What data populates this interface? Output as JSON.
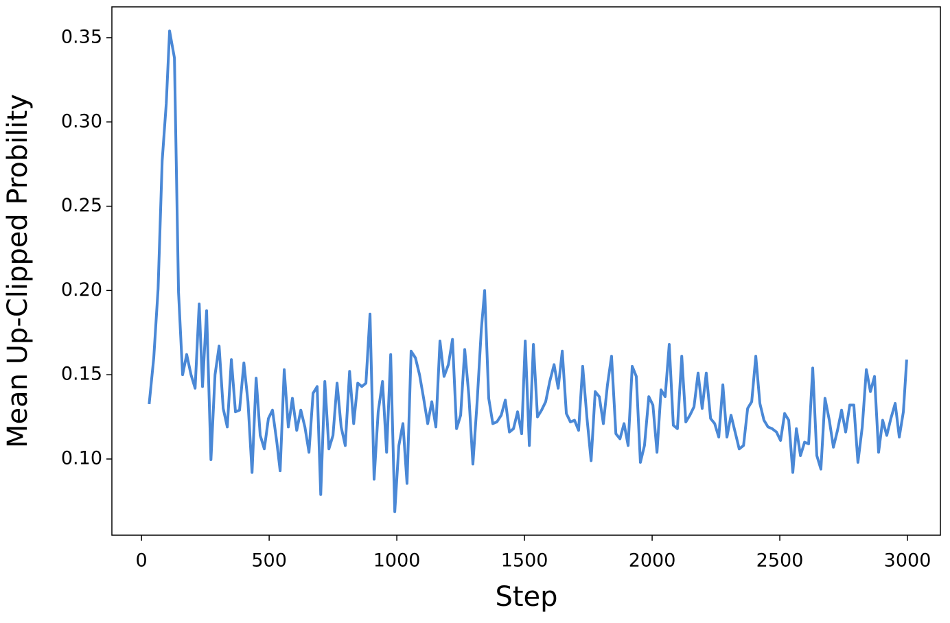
{
  "chart_data": {
    "type": "line",
    "xlabel": "Step",
    "ylabel": "Mean Up-Clipped Probility",
    "x": [
      30,
      48,
      65,
      81,
      97,
      110,
      129,
      145,
      161,
      177,
      194,
      210,
      226,
      239,
      255,
      272,
      288,
      304,
      320,
      336,
      352,
      368,
      384,
      401,
      417,
      433,
      449,
      465,
      481,
      497,
      513,
      530,
      543,
      559,
      575,
      591,
      608,
      624,
      640,
      656,
      672,
      688,
      702,
      718,
      734,
      750,
      766,
      782,
      798,
      815,
      831,
      847,
      863,
      879,
      895,
      911,
      927,
      944,
      960,
      976,
      992,
      1008,
      1024,
      1040,
      1056,
      1073,
      1089,
      1105,
      1121,
      1137,
      1153,
      1169,
      1185,
      1202,
      1218,
      1234,
      1250,
      1266,
      1282,
      1298,
      1315,
      1331,
      1344,
      1360,
      1376,
      1392,
      1409,
      1425,
      1441,
      1457,
      1473,
      1489,
      1503,
      1519,
      1535,
      1551,
      1567,
      1583,
      1599,
      1616,
      1632,
      1648,
      1664,
      1680,
      1696,
      1712,
      1728,
      1745,
      1761,
      1777,
      1793,
      1809,
      1825,
      1841,
      1858,
      1874,
      1890,
      1906,
      1922,
      1938,
      1954,
      1970,
      1987,
      2003,
      2019,
      2035,
      2051,
      2067,
      2083,
      2099,
      2116,
      2132,
      2148,
      2164,
      2180,
      2196,
      2212,
      2229,
      2245,
      2261,
      2277,
      2293,
      2309,
      2325,
      2341,
      2358,
      2374,
      2390,
      2406,
      2422,
      2438,
      2454,
      2470,
      2487,
      2503,
      2519,
      2535,
      2551,
      2565,
      2581,
      2597,
      2613,
      2629,
      2645,
      2661,
      2677,
      2694,
      2710,
      2726,
      2742,
      2758,
      2774,
      2790,
      2806,
      2823,
      2839,
      2855,
      2871,
      2887,
      2903,
      2919,
      2935,
      2952,
      2968,
      2984,
      2997
    ],
    "series": [
      {
        "color": "#4a88d6",
        "values": [
          0.1326,
          0.16,
          0.201,
          0.277,
          0.311,
          0.354,
          0.338,
          0.199,
          0.15,
          0.162,
          0.15,
          0.142,
          0.192,
          0.143,
          0.188,
          0.0996,
          0.15,
          0.167,
          0.13,
          0.119,
          0.159,
          0.128,
          0.129,
          0.157,
          0.134,
          0.092,
          0.148,
          0.114,
          0.106,
          0.124,
          0.129,
          0.11,
          0.093,
          0.153,
          0.119,
          0.136,
          0.117,
          0.129,
          0.119,
          0.104,
          0.139,
          0.143,
          0.0789,
          0.146,
          0.106,
          0.114,
          0.145,
          0.119,
          0.108,
          0.152,
          0.121,
          0.145,
          0.143,
          0.145,
          0.186,
          0.088,
          0.128,
          0.146,
          0.104,
          0.162,
          0.0687,
          0.108,
          0.121,
          0.0855,
          0.164,
          0.16,
          0.15,
          0.136,
          0.121,
          0.134,
          0.119,
          0.17,
          0.149,
          0.156,
          0.171,
          0.118,
          0.126,
          0.165,
          0.138,
          0.097,
          0.135,
          0.177,
          0.2,
          0.136,
          0.121,
          0.122,
          0.126,
          0.135,
          0.116,
          0.118,
          0.128,
          0.115,
          0.17,
          0.108,
          0.168,
          0.125,
          0.129,
          0.134,
          0.146,
          0.156,
          0.142,
          0.164,
          0.127,
          0.122,
          0.123,
          0.117,
          0.155,
          0.124,
          0.099,
          0.14,
          0.137,
          0.121,
          0.144,
          0.161,
          0.115,
          0.112,
          0.121,
          0.108,
          0.155,
          0.149,
          0.098,
          0.108,
          0.137,
          0.132,
          0.104,
          0.141,
          0.137,
          0.168,
          0.12,
          0.118,
          0.161,
          0.122,
          0.126,
          0.131,
          0.151,
          0.13,
          0.151,
          0.124,
          0.121,
          0.113,
          0.144,
          0.113,
          0.126,
          0.116,
          0.106,
          0.108,
          0.13,
          0.134,
          0.161,
          0.133,
          0.123,
          0.119,
          0.118,
          0.116,
          0.111,
          0.127,
          0.123,
          0.092,
          0.118,
          0.102,
          0.11,
          0.109,
          0.154,
          0.102,
          0.094,
          0.136,
          0.123,
          0.107,
          0.117,
          0.129,
          0.116,
          0.132,
          0.132,
          0.098,
          0.119,
          0.153,
          0.14,
          0.149,
          0.104,
          0.123,
          0.114,
          0.124,
          0.133,
          0.113,
          0.128,
          0.159
        ]
      }
    ],
    "xlim": [
      -116,
      3129
    ],
    "ylim": [
      0.0548,
      0.3683
    ],
    "xticks": [
      0,
      500,
      1000,
      1500,
      2000,
      2500,
      3000
    ],
    "yticks": [
      {
        "value": 0.1,
        "label": "0.10"
      },
      0.15,
      {
        "value": 0.2,
        "label": "0.20"
      },
      0.25,
      {
        "value": 0.3,
        "label": "0.30"
      },
      0.35
    ]
  }
}
